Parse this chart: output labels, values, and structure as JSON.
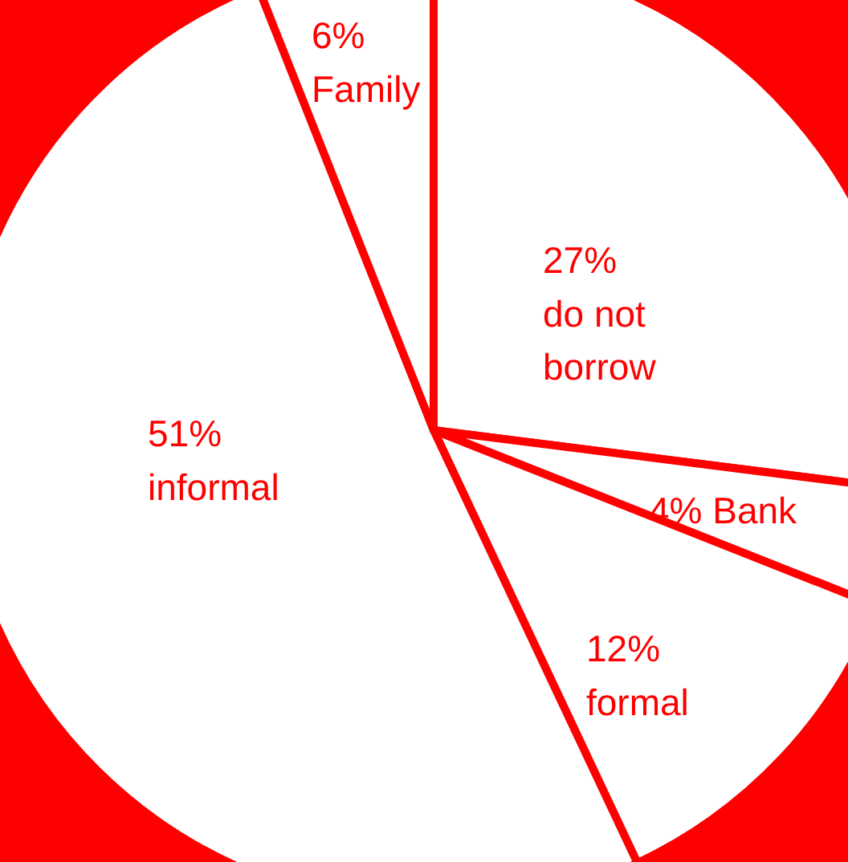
{
  "chart_data": {
    "type": "pie",
    "categories": [
      "do not borrow",
      "Bank",
      "formal",
      "informal",
      "Family"
    ],
    "values": [
      27,
      4,
      12,
      51,
      6
    ],
    "value_labels": [
      "27%",
      "4%",
      "12%",
      "51%",
      "6%"
    ],
    "colors": [
      "#ffffff",
      "#ffffff",
      "#ffffff",
      "#ffffff",
      "#ffffff"
    ]
  }
}
